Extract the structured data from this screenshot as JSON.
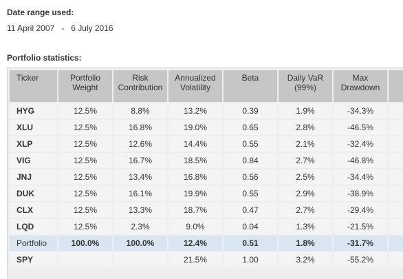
{
  "date_range": {
    "heading": "Date range used:",
    "start": "11 April 2007",
    "separator": "-",
    "end": "6 July 2016"
  },
  "stats": {
    "heading": "Portfolio statistics:",
    "columns": [
      [
        "Ticker"
      ],
      [
        "Portfolio",
        "Weight"
      ],
      [
        "Risk",
        "Contribution"
      ],
      [
        "Annualized",
        "Volatility"
      ],
      [
        "Beta"
      ],
      [
        "Daily VaR",
        "(99%)"
      ],
      [
        "Max",
        "Drawdown"
      ]
    ],
    "rows": [
      {
        "ticker": "HYG",
        "weight": "12.5%",
        "risk": "8.8%",
        "vol": "13.2%",
        "beta": "0.39",
        "var": "1.9%",
        "mdd": "-34.3%"
      },
      {
        "ticker": "XLU",
        "weight": "12.5%",
        "risk": "16.8%",
        "vol": "19.0%",
        "beta": "0.65",
        "var": "2.8%",
        "mdd": "-46.5%"
      },
      {
        "ticker": "XLP",
        "weight": "12.5%",
        "risk": "12.6%",
        "vol": "14.4%",
        "beta": "0.55",
        "var": "2.1%",
        "mdd": "-32.4%"
      },
      {
        "ticker": "VIG",
        "weight": "12.5%",
        "risk": "16.7%",
        "vol": "18.5%",
        "beta": "0.84",
        "var": "2.7%",
        "mdd": "-46.8%"
      },
      {
        "ticker": "JNJ",
        "weight": "12.5%",
        "risk": "13.4%",
        "vol": "16.8%",
        "beta": "0.56",
        "var": "2.5%",
        "mdd": "-34.4%"
      },
      {
        "ticker": "DUK",
        "weight": "12.5%",
        "risk": "16.1%",
        "vol": "19.9%",
        "beta": "0.55",
        "var": "2.9%",
        "mdd": "-38.9%"
      },
      {
        "ticker": "CLX",
        "weight": "12.5%",
        "risk": "13.3%",
        "vol": "18.7%",
        "beta": "0.47",
        "var": "2.7%",
        "mdd": "-29.4%"
      },
      {
        "ticker": "LQD",
        "weight": "12.5%",
        "risk": "2.3%",
        "vol": "9.0%",
        "beta": "0.04",
        "var": "1.3%",
        "mdd": "-21.5%"
      },
      {
        "ticker": "Portfolio",
        "weight": "100.0%",
        "risk": "100.0%",
        "vol": "12.4%",
        "beta": "0.51",
        "var": "1.8%",
        "mdd": "-31.7%",
        "highlight": true
      },
      {
        "ticker": "SPY",
        "weight": "",
        "risk": "",
        "vol": "21.5%",
        "beta": "1.00",
        "var": "3.2%",
        "mdd": "-55.2%"
      }
    ]
  },
  "colors": {
    "header_bg": "#c6c6c6",
    "cell_bg": "#f4f4f4",
    "highlight_bg": "#d9e5f1",
    "grid_bg": "#eeeeee"
  }
}
